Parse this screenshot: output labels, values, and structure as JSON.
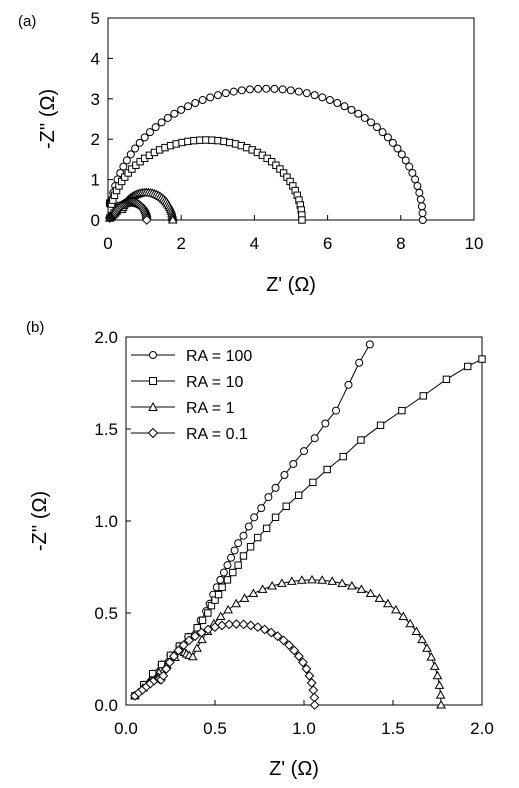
{
  "chart_data": [
    {
      "panel_label": "(a)",
      "type": "scatter",
      "xlabel": "Z'  (Ω)",
      "ylabel": "-Z''  (Ω)",
      "xlim": [
        0,
        10
      ],
      "ylim": [
        0,
        5
      ],
      "xticks": [
        "0",
        "2",
        "4",
        "6",
        "8",
        "10"
      ],
      "yticks": [
        "0",
        "1",
        "2",
        "3",
        "4",
        "5"
      ],
      "grid": false,
      "line_color": "#000000",
      "series": [
        {
          "marker": "circle",
          "arc": {
            "start": 0.05,
            "end": 8.6,
            "peak_x": 4.35,
            "peak_y": 3.25
          },
          "tail": [
            [
              0.05,
              0.05
            ],
            [
              0.4,
              0.42
            ]
          ],
          "points": 60
        },
        {
          "marker": "square",
          "arc": {
            "start": 0.05,
            "end": 5.3,
            "peak_x": 2.8,
            "peak_y": 1.98
          },
          "tail": [
            [
              0.05,
              0.05
            ],
            [
              0.4,
              0.42
            ]
          ],
          "points": 50
        },
        {
          "marker": "triangle",
          "arc": {
            "start": 0.32,
            "end": 1.77,
            "peak_x": 1.05,
            "peak_y": 0.68
          },
          "tail": [
            [
              0.05,
              0.05
            ],
            [
              0.32,
              0.3
            ]
          ],
          "points": 40
        },
        {
          "marker": "diamond",
          "arc": {
            "start": 0.18,
            "end": 1.06,
            "peak_x": 0.62,
            "peak_y": 0.44
          },
          "tail": [
            [
              0.05,
              0.05
            ],
            [
              0.18,
              0.15
            ]
          ],
          "points": 34
        }
      ]
    },
    {
      "panel_label": "(b)",
      "type": "line",
      "xlabel": "Z'  (Ω)",
      "ylabel": "-Z''  (Ω)",
      "xlim": [
        0,
        2.0
      ],
      "ylim": [
        0,
        2.0
      ],
      "xticks": [
        "0.0",
        "0.5",
        "1.0",
        "1.5",
        "2.0"
      ],
      "yticks": [
        "0.0",
        "0.5",
        "1.0",
        "1.5",
        "2.0"
      ],
      "grid": false,
      "legend": "top-left",
      "line_color": "#000000",
      "series": [
        {
          "name": "RA = 100",
          "marker": "circle",
          "x": [
            0.05,
            0.1,
            0.15,
            0.2,
            0.25,
            0.3,
            0.35,
            0.4,
            0.42,
            0.45,
            0.47,
            0.49,
            0.51,
            0.53,
            0.55,
            0.57,
            0.59,
            0.61,
            0.63,
            0.66,
            0.69,
            0.72,
            0.76,
            0.8,
            0.84,
            0.89,
            0.94,
            1.0,
            1.06,
            1.12,
            1.18,
            1.25,
            1.31,
            1.37
          ],
          "y": [
            0.05,
            0.11,
            0.17,
            0.22,
            0.27,
            0.32,
            0.37,
            0.42,
            0.46,
            0.51,
            0.55,
            0.6,
            0.64,
            0.68,
            0.72,
            0.76,
            0.8,
            0.84,
            0.88,
            0.92,
            0.97,
            1.02,
            1.07,
            1.13,
            1.18,
            1.25,
            1.31,
            1.38,
            1.45,
            1.53,
            1.6,
            1.74,
            1.86,
            1.96
          ]
        },
        {
          "name": "RA = 10",
          "marker": "square",
          "x": [
            0.05,
            0.1,
            0.15,
            0.2,
            0.25,
            0.3,
            0.35,
            0.4,
            0.43,
            0.46,
            0.48,
            0.5,
            0.52,
            0.54,
            0.57,
            0.6,
            0.63,
            0.66,
            0.7,
            0.74,
            0.79,
            0.84,
            0.9,
            0.97,
            1.05,
            1.13,
            1.22,
            1.32,
            1.43,
            1.55,
            1.67,
            1.8,
            1.92,
            2.0
          ],
          "y": [
            0.05,
            0.11,
            0.17,
            0.22,
            0.27,
            0.32,
            0.37,
            0.42,
            0.46,
            0.5,
            0.54,
            0.57,
            0.6,
            0.64,
            0.68,
            0.72,
            0.76,
            0.81,
            0.86,
            0.91,
            0.96,
            1.02,
            1.08,
            1.14,
            1.21,
            1.28,
            1.35,
            1.44,
            1.52,
            1.6,
            1.68,
            1.77,
            1.84,
            1.88
          ]
        }
      ],
      "arc_series": [
        {
          "name": "RA = 1",
          "marker": "triangle",
          "arc": {
            "start": 0.32,
            "end": 1.77,
            "peak_x": 1.05,
            "peak_y": 0.68
          },
          "tail": [
            [
              0.05,
              0.05
            ],
            [
              0.32,
              0.3
            ]
          ],
          "points": 40
        },
        {
          "name": "RA = 0.1",
          "marker": "diamond",
          "arc": {
            "start": 0.18,
            "end": 1.06,
            "peak_x": 0.62,
            "peak_y": 0.44
          },
          "tail": [
            [
              0.05,
              0.05
            ],
            [
              0.18,
              0.15
            ]
          ],
          "points": 34
        }
      ]
    }
  ]
}
